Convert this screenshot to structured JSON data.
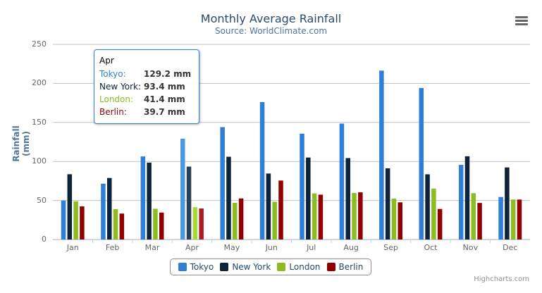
{
  "chart_data": {
    "type": "bar",
    "title": "Monthly Average Rainfall",
    "subtitle": "Source: WorldClimate.com",
    "xlabel": "",
    "ylabel": "Rainfall (mm)",
    "ylim": [
      0,
      250
    ],
    "yticks": [
      "0",
      "50",
      "100",
      "150",
      "200",
      "250"
    ],
    "grid": true,
    "legend_position": "bottom",
    "categories": [
      "Jan",
      "Feb",
      "Mar",
      "Apr",
      "May",
      "Jun",
      "Jul",
      "Aug",
      "Sep",
      "Oct",
      "Nov",
      "Dec"
    ],
    "series": [
      {
        "name": "Tokyo",
        "color": "#2f7ed8",
        "values": [
          49.9,
          71.5,
          106.4,
          129.2,
          144.0,
          176.0,
          135.6,
          148.5,
          216.4,
          194.1,
          95.6,
          54.4
        ]
      },
      {
        "name": "New York",
        "color": "#0d233a",
        "values": [
          83.6,
          78.8,
          98.5,
          93.4,
          106.0,
          84.5,
          105.0,
          104.3,
          91.2,
          83.5,
          106.6,
          92.3
        ]
      },
      {
        "name": "London",
        "color": "#8bbc21",
        "values": [
          48.9,
          38.8,
          39.3,
          41.4,
          47.0,
          48.3,
          59.0,
          59.6,
          52.4,
          65.2,
          59.3,
          51.2
        ]
      },
      {
        "name": "Berlin",
        "color": "#910000",
        "values": [
          42.4,
          33.2,
          34.5,
          39.7,
          52.6,
          75.5,
          57.4,
          60.4,
          47.6,
          39.1,
          46.8,
          51.1
        ]
      }
    ]
  },
  "tooltip": {
    "header": "Apr",
    "rows": [
      {
        "label": "Tokyo:",
        "value": "129.2 mm"
      },
      {
        "label": "New York:",
        "value": "93.4 mm"
      },
      {
        "label": "London:",
        "value": "41.4 mm"
      },
      {
        "label": "Berlin:",
        "value": "39.7 mm"
      }
    ]
  },
  "credits": "Highcharts.com",
  "menu_icon": "hamburger-menu-icon"
}
